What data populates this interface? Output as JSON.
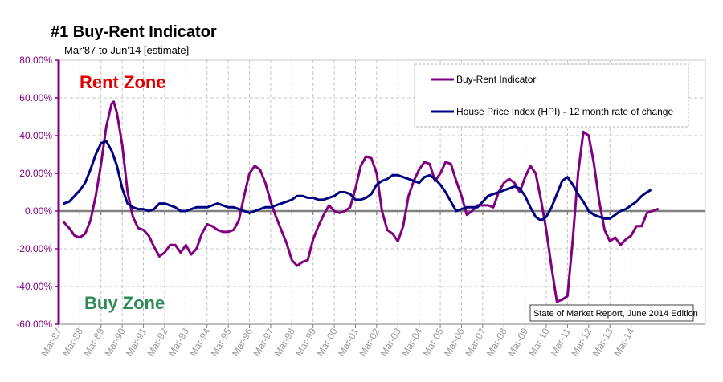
{
  "chart_data": {
    "type": "line",
    "title": "#1 Buy-Rent Indicator",
    "subtitle": "Mar'87 to Jun'14 [estimate]",
    "zone_labels": {
      "upper": {
        "text": "Rent Zone",
        "color": "#e00000"
      },
      "lower": {
        "text": "Buy Zone",
        "color": "#2e8b57"
      }
    },
    "source_note": "State of Market Report, June 2014 Edition",
    "ylim": [
      -60,
      80
    ],
    "y_ticks": [
      -60,
      -40,
      -20,
      0,
      20,
      40,
      60,
      80
    ],
    "y_tick_labels": [
      "-60.00%",
      "-40.00%",
      "-20.00%",
      "0.00%",
      "20.00%",
      "40.00%",
      "60.00%",
      "80.00%"
    ],
    "x_range": [
      1987.0,
      2014.417
    ],
    "x_ticks": [
      1987,
      1988,
      1989,
      1990,
      1991,
      1992,
      1993,
      1994,
      1995,
      1996,
      1997,
      1998,
      1999,
      2000,
      2001,
      2002,
      2003,
      2004,
      2005,
      2006,
      2007,
      2008,
      2009,
      2010,
      2011,
      2012,
      2013,
      2014
    ],
    "x_tick_labels": [
      "Mar-87",
      "Mar-88",
      "Mar-89",
      "Mar-90",
      "Mar-91",
      "Mar-92",
      "Mar-93",
      "Mar-94",
      "Mar-95",
      "Mar-96",
      "Mar-97",
      "Mar-98",
      "Mar-99",
      "Mar-00",
      "Mar-01",
      "Mar-02",
      "Mar-03",
      "Mar-04",
      "Mar-05",
      "Mar-06",
      "Mar-07",
      "Mar-08",
      "Mar-09",
      "Mar-10",
      "Mar-11",
      "Mar-12",
      "Mar-13",
      "Mar-14"
    ],
    "grid": true,
    "legend_position": "top-right",
    "series": [
      {
        "name": "Buy-Rent Indicator",
        "color": "#800080",
        "points": [
          [
            1987.25,
            -6
          ],
          [
            1987.5,
            -9
          ],
          [
            1987.75,
            -13
          ],
          [
            1988.0,
            -14
          ],
          [
            1988.25,
            -12
          ],
          [
            1988.5,
            -5
          ],
          [
            1988.75,
            8
          ],
          [
            1989.0,
            25
          ],
          [
            1989.25,
            45
          ],
          [
            1989.5,
            57
          ],
          [
            1989.6,
            58
          ],
          [
            1989.75,
            52
          ],
          [
            1990.0,
            35
          ],
          [
            1990.25,
            10
          ],
          [
            1990.5,
            -3
          ],
          [
            1990.75,
            -9
          ],
          [
            1991.0,
            -10
          ],
          [
            1991.25,
            -13
          ],
          [
            1991.5,
            -19
          ],
          [
            1991.75,
            -24
          ],
          [
            1992.0,
            -22
          ],
          [
            1992.25,
            -18
          ],
          [
            1992.5,
            -18
          ],
          [
            1992.75,
            -22
          ],
          [
            1993.0,
            -18
          ],
          [
            1993.25,
            -23
          ],
          [
            1993.5,
            -20
          ],
          [
            1993.75,
            -12
          ],
          [
            1994.0,
            -7
          ],
          [
            1994.25,
            -8
          ],
          [
            1994.5,
            -10
          ],
          [
            1994.75,
            -11
          ],
          [
            1995.0,
            -11
          ],
          [
            1995.25,
            -10
          ],
          [
            1995.5,
            -5
          ],
          [
            1995.75,
            8
          ],
          [
            1996.0,
            20
          ],
          [
            1996.25,
            24
          ],
          [
            1996.5,
            22
          ],
          [
            1996.75,
            15
          ],
          [
            1997.0,
            5
          ],
          [
            1997.25,
            -3
          ],
          [
            1997.5,
            -10
          ],
          [
            1997.75,
            -17
          ],
          [
            1998.0,
            -26
          ],
          [
            1998.25,
            -29
          ],
          [
            1998.5,
            -27
          ],
          [
            1998.75,
            -26
          ],
          [
            1999.0,
            -15
          ],
          [
            1999.25,
            -8
          ],
          [
            1999.5,
            -2
          ],
          [
            1999.75,
            3
          ],
          [
            2000.0,
            0
          ],
          [
            2000.25,
            -1
          ],
          [
            2000.5,
            0
          ],
          [
            2000.75,
            2
          ],
          [
            2001.0,
            12
          ],
          [
            2001.25,
            24
          ],
          [
            2001.5,
            29
          ],
          [
            2001.75,
            28
          ],
          [
            2002.0,
            20
          ],
          [
            2002.25,
            0
          ],
          [
            2002.5,
            -10
          ],
          [
            2002.75,
            -12
          ],
          [
            2003.0,
            -16
          ],
          [
            2003.25,
            -8
          ],
          [
            2003.5,
            8
          ],
          [
            2003.75,
            16
          ],
          [
            2004.0,
            22
          ],
          [
            2004.25,
            26
          ],
          [
            2004.5,
            25
          ],
          [
            2004.75,
            16
          ],
          [
            2005.0,
            20
          ],
          [
            2005.25,
            26
          ],
          [
            2005.5,
            25
          ],
          [
            2005.75,
            16
          ],
          [
            2006.0,
            8
          ],
          [
            2006.25,
            -2
          ],
          [
            2006.5,
            0
          ],
          [
            2006.75,
            3
          ],
          [
            2007.0,
            3
          ],
          [
            2007.25,
            3
          ],
          [
            2007.5,
            2
          ],
          [
            2007.75,
            10
          ],
          [
            2008.0,
            15
          ],
          [
            2008.25,
            17
          ],
          [
            2008.5,
            15
          ],
          [
            2008.75,
            10
          ],
          [
            2009.0,
            18
          ],
          [
            2009.25,
            24
          ],
          [
            2009.5,
            20
          ],
          [
            2009.75,
            6
          ],
          [
            2010.0,
            -10
          ],
          [
            2010.25,
            -30
          ],
          [
            2010.5,
            -48
          ],
          [
            2010.75,
            -47
          ],
          [
            2011.0,
            -45
          ],
          [
            2011.25,
            -15
          ],
          [
            2011.5,
            20
          ],
          [
            2011.75,
            42
          ],
          [
            2012.0,
            40
          ],
          [
            2012.25,
            25
          ],
          [
            2012.5,
            5
          ],
          [
            2012.75,
            -10
          ],
          [
            2013.0,
            -16
          ],
          [
            2013.25,
            -14
          ],
          [
            2013.5,
            -18
          ],
          [
            2013.75,
            -15
          ],
          [
            2014.0,
            -13
          ],
          [
            2014.25,
            -8
          ],
          [
            2014.5,
            -8
          ],
          [
            2014.75,
            -1
          ],
          [
            2015.0,
            0
          ],
          [
            2015.25,
            1
          ]
        ]
      },
      {
        "name": "House Price Index (HPI) - 12 month rate of change",
        "color": "#000080",
        "points": [
          [
            1987.25,
            4
          ],
          [
            1987.5,
            5
          ],
          [
            1987.75,
            8
          ],
          [
            1988.0,
            11
          ],
          [
            1988.25,
            15
          ],
          [
            1988.5,
            22
          ],
          [
            1988.75,
            30
          ],
          [
            1989.0,
            36
          ],
          [
            1989.25,
            37
          ],
          [
            1989.5,
            32
          ],
          [
            1989.75,
            24
          ],
          [
            1990.0,
            12
          ],
          [
            1990.25,
            4
          ],
          [
            1990.5,
            2
          ],
          [
            1990.75,
            1
          ],
          [
            1991.0,
            1
          ],
          [
            1991.25,
            0
          ],
          [
            1991.5,
            1
          ],
          [
            1991.75,
            4
          ],
          [
            1992.0,
            4
          ],
          [
            1992.25,
            3
          ],
          [
            1992.5,
            2
          ],
          [
            1992.75,
            0
          ],
          [
            1993.0,
            0
          ],
          [
            1993.25,
            1
          ],
          [
            1993.5,
            2
          ],
          [
            1993.75,
            2
          ],
          [
            1994.0,
            2
          ],
          [
            1994.25,
            3
          ],
          [
            1994.5,
            4
          ],
          [
            1994.75,
            3
          ],
          [
            1995.0,
            2
          ],
          [
            1995.25,
            2
          ],
          [
            1995.5,
            1
          ],
          [
            1995.75,
            0
          ],
          [
            1996.0,
            -1
          ],
          [
            1996.25,
            0
          ],
          [
            1996.5,
            1
          ],
          [
            1996.75,
            2
          ],
          [
            1997.0,
            2
          ],
          [
            1997.25,
            3
          ],
          [
            1997.5,
            4
          ],
          [
            1997.75,
            5
          ],
          [
            1998.0,
            6
          ],
          [
            1998.25,
            8
          ],
          [
            1998.5,
            8
          ],
          [
            1998.75,
            7
          ],
          [
            1999.0,
            7
          ],
          [
            1999.25,
            6
          ],
          [
            1999.5,
            6
          ],
          [
            1999.75,
            7
          ],
          [
            2000.0,
            8
          ],
          [
            2000.25,
            10
          ],
          [
            2000.5,
            10
          ],
          [
            2000.75,
            9
          ],
          [
            2001.0,
            6
          ],
          [
            2001.25,
            6
          ],
          [
            2001.5,
            7
          ],
          [
            2001.75,
            9
          ],
          [
            2002.0,
            14
          ],
          [
            2002.25,
            16
          ],
          [
            2002.5,
            17
          ],
          [
            2002.75,
            19
          ],
          [
            2003.0,
            19
          ],
          [
            2003.25,
            18
          ],
          [
            2003.5,
            17
          ],
          [
            2003.75,
            16
          ],
          [
            2004.0,
            15
          ],
          [
            2004.25,
            18
          ],
          [
            2004.5,
            19
          ],
          [
            2004.75,
            17
          ],
          [
            2005.0,
            14
          ],
          [
            2005.25,
            10
          ],
          [
            2005.5,
            5
          ],
          [
            2005.75,
            0
          ],
          [
            2006.0,
            1
          ],
          [
            2006.25,
            2
          ],
          [
            2006.5,
            2
          ],
          [
            2006.75,
            2
          ],
          [
            2007.0,
            5
          ],
          [
            2007.25,
            8
          ],
          [
            2007.5,
            9
          ],
          [
            2007.75,
            10
          ],
          [
            2008.0,
            11
          ],
          [
            2008.25,
            12
          ],
          [
            2008.5,
            13
          ],
          [
            2008.75,
            12
          ],
          [
            2009.0,
            8
          ],
          [
            2009.25,
            2
          ],
          [
            2009.5,
            -3
          ],
          [
            2009.75,
            -5
          ],
          [
            2010.0,
            -3
          ],
          [
            2010.25,
            2
          ],
          [
            2010.5,
            9
          ],
          [
            2010.75,
            16
          ],
          [
            2011.0,
            18
          ],
          [
            2011.25,
            14
          ],
          [
            2011.5,
            9
          ],
          [
            2011.75,
            5
          ],
          [
            2012.0,
            0
          ],
          [
            2012.25,
            -2
          ],
          [
            2012.5,
            -3
          ],
          [
            2012.75,
            -4
          ],
          [
            2013.0,
            -4
          ],
          [
            2013.25,
            -2
          ],
          [
            2013.5,
            0
          ],
          [
            2013.75,
            1
          ],
          [
            2014.0,
            3
          ],
          [
            2014.25,
            5
          ],
          [
            2014.5,
            8
          ],
          [
            2014.75,
            10
          ],
          [
            2014.9,
            11
          ]
        ]
      }
    ]
  }
}
